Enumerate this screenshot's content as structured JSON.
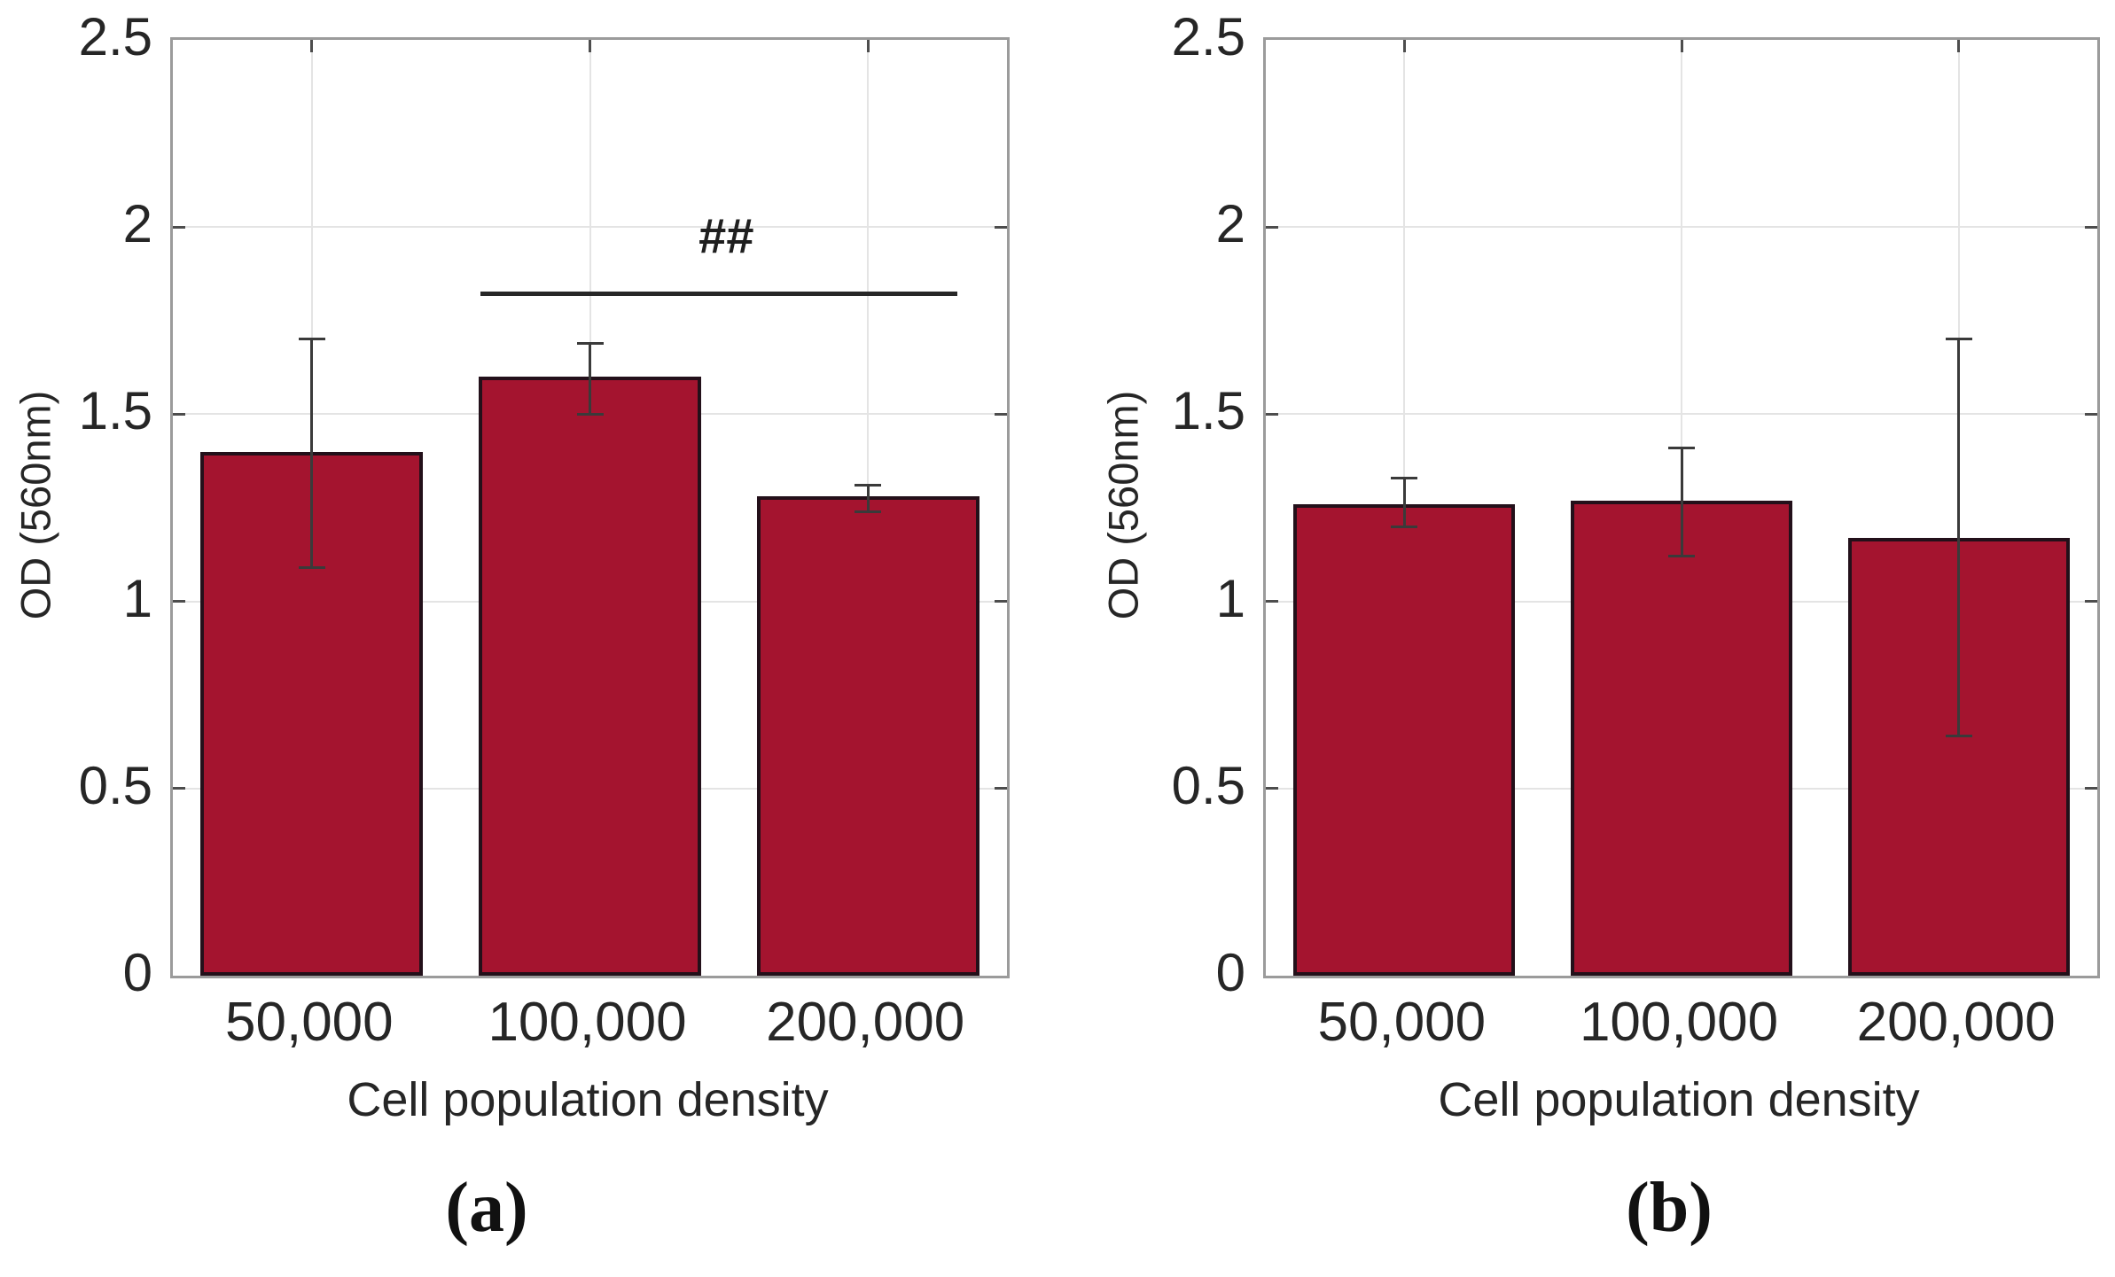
{
  "figure": {
    "background": "#ffffff",
    "colors": {
      "bar_fill": "#a4142f",
      "bar_edge": "#23101a",
      "error_bar": "#3a3a3a",
      "spine": "#9b9b9b",
      "gridline": "#e4e4e4",
      "tick_mark": "#4d4d4d",
      "text": "#262626",
      "significance": "#1f1f1f"
    }
  },
  "chart_data": [
    {
      "type": "bar",
      "panel": "a",
      "caption": "(a)",
      "xlabel": "Cell population density",
      "ylabel": "OD (560nm)",
      "categories": [
        "50,000",
        "100,000",
        "200,000"
      ],
      "values": [
        1.4,
        1.6,
        1.28
      ],
      "error_low": [
        1.09,
        1.5,
        1.24
      ],
      "error_high": [
        1.7,
        1.69,
        1.31
      ],
      "ylim": [
        0,
        2.5
      ],
      "yticks": [
        0,
        0.5,
        1,
        1.5,
        2,
        2.5
      ],
      "ytick_labels": [
        "0",
        "0.5",
        "1",
        "1.5",
        "2",
        "2.5"
      ],
      "grid": true,
      "legend": "none",
      "annotation": {
        "text": "##",
        "type": "significance-bracket",
        "between": [
          "100,000",
          "200,000"
        ],
        "line_y": 1.82,
        "label_y": 1.97
      }
    },
    {
      "type": "bar",
      "panel": "b",
      "caption": "(b)",
      "xlabel": "Cell population density",
      "ylabel": "OD (560nm)",
      "categories": [
        "50,000",
        "100,000",
        "200,000"
      ],
      "values": [
        1.26,
        1.27,
        1.17
      ],
      "error_low": [
        1.2,
        1.12,
        0.64
      ],
      "error_high": [
        1.33,
        1.41,
        1.7
      ],
      "ylim": [
        0,
        2.5
      ],
      "yticks": [
        0,
        0.5,
        1,
        1.5,
        2,
        2.5
      ],
      "ytick_labels": [
        "0",
        "0.5",
        "1",
        "1.5",
        "2",
        "2.5"
      ],
      "grid": true,
      "legend": "none",
      "annotation": null
    }
  ]
}
